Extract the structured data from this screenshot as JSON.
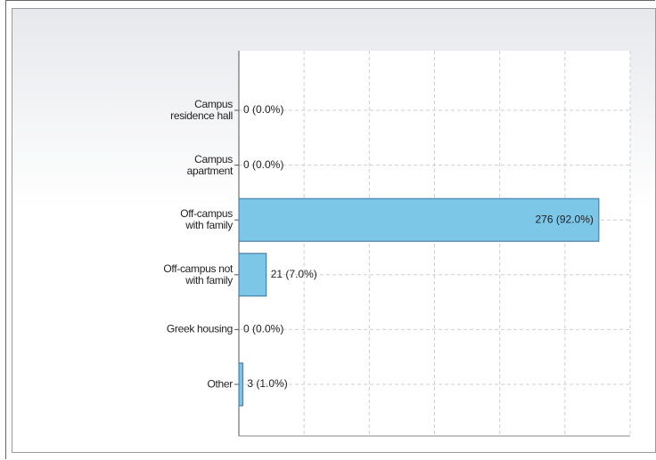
{
  "chart_data": {
    "type": "hbar",
    "categories": [
      "Campus\nresidence hall",
      "Campus\napartment",
      "Off-campus\nwith family",
      "Off-campus not\nwith family",
      "Greek housing",
      "Other"
    ],
    "values": [
      0,
      0,
      276,
      21,
      0,
      3
    ],
    "value_labels": [
      "0 (0.0%)",
      "0 (0.0%)",
      "276 (92.0%)",
      "21 (7.0%)",
      "0 (0.0%)",
      "3 (1.0%)"
    ],
    "color": "#7cc6e8",
    "xlim": [
      0,
      300
    ],
    "xticks": [
      0,
      50,
      100,
      150,
      200,
      250,
      300
    ],
    "grid": true
  }
}
